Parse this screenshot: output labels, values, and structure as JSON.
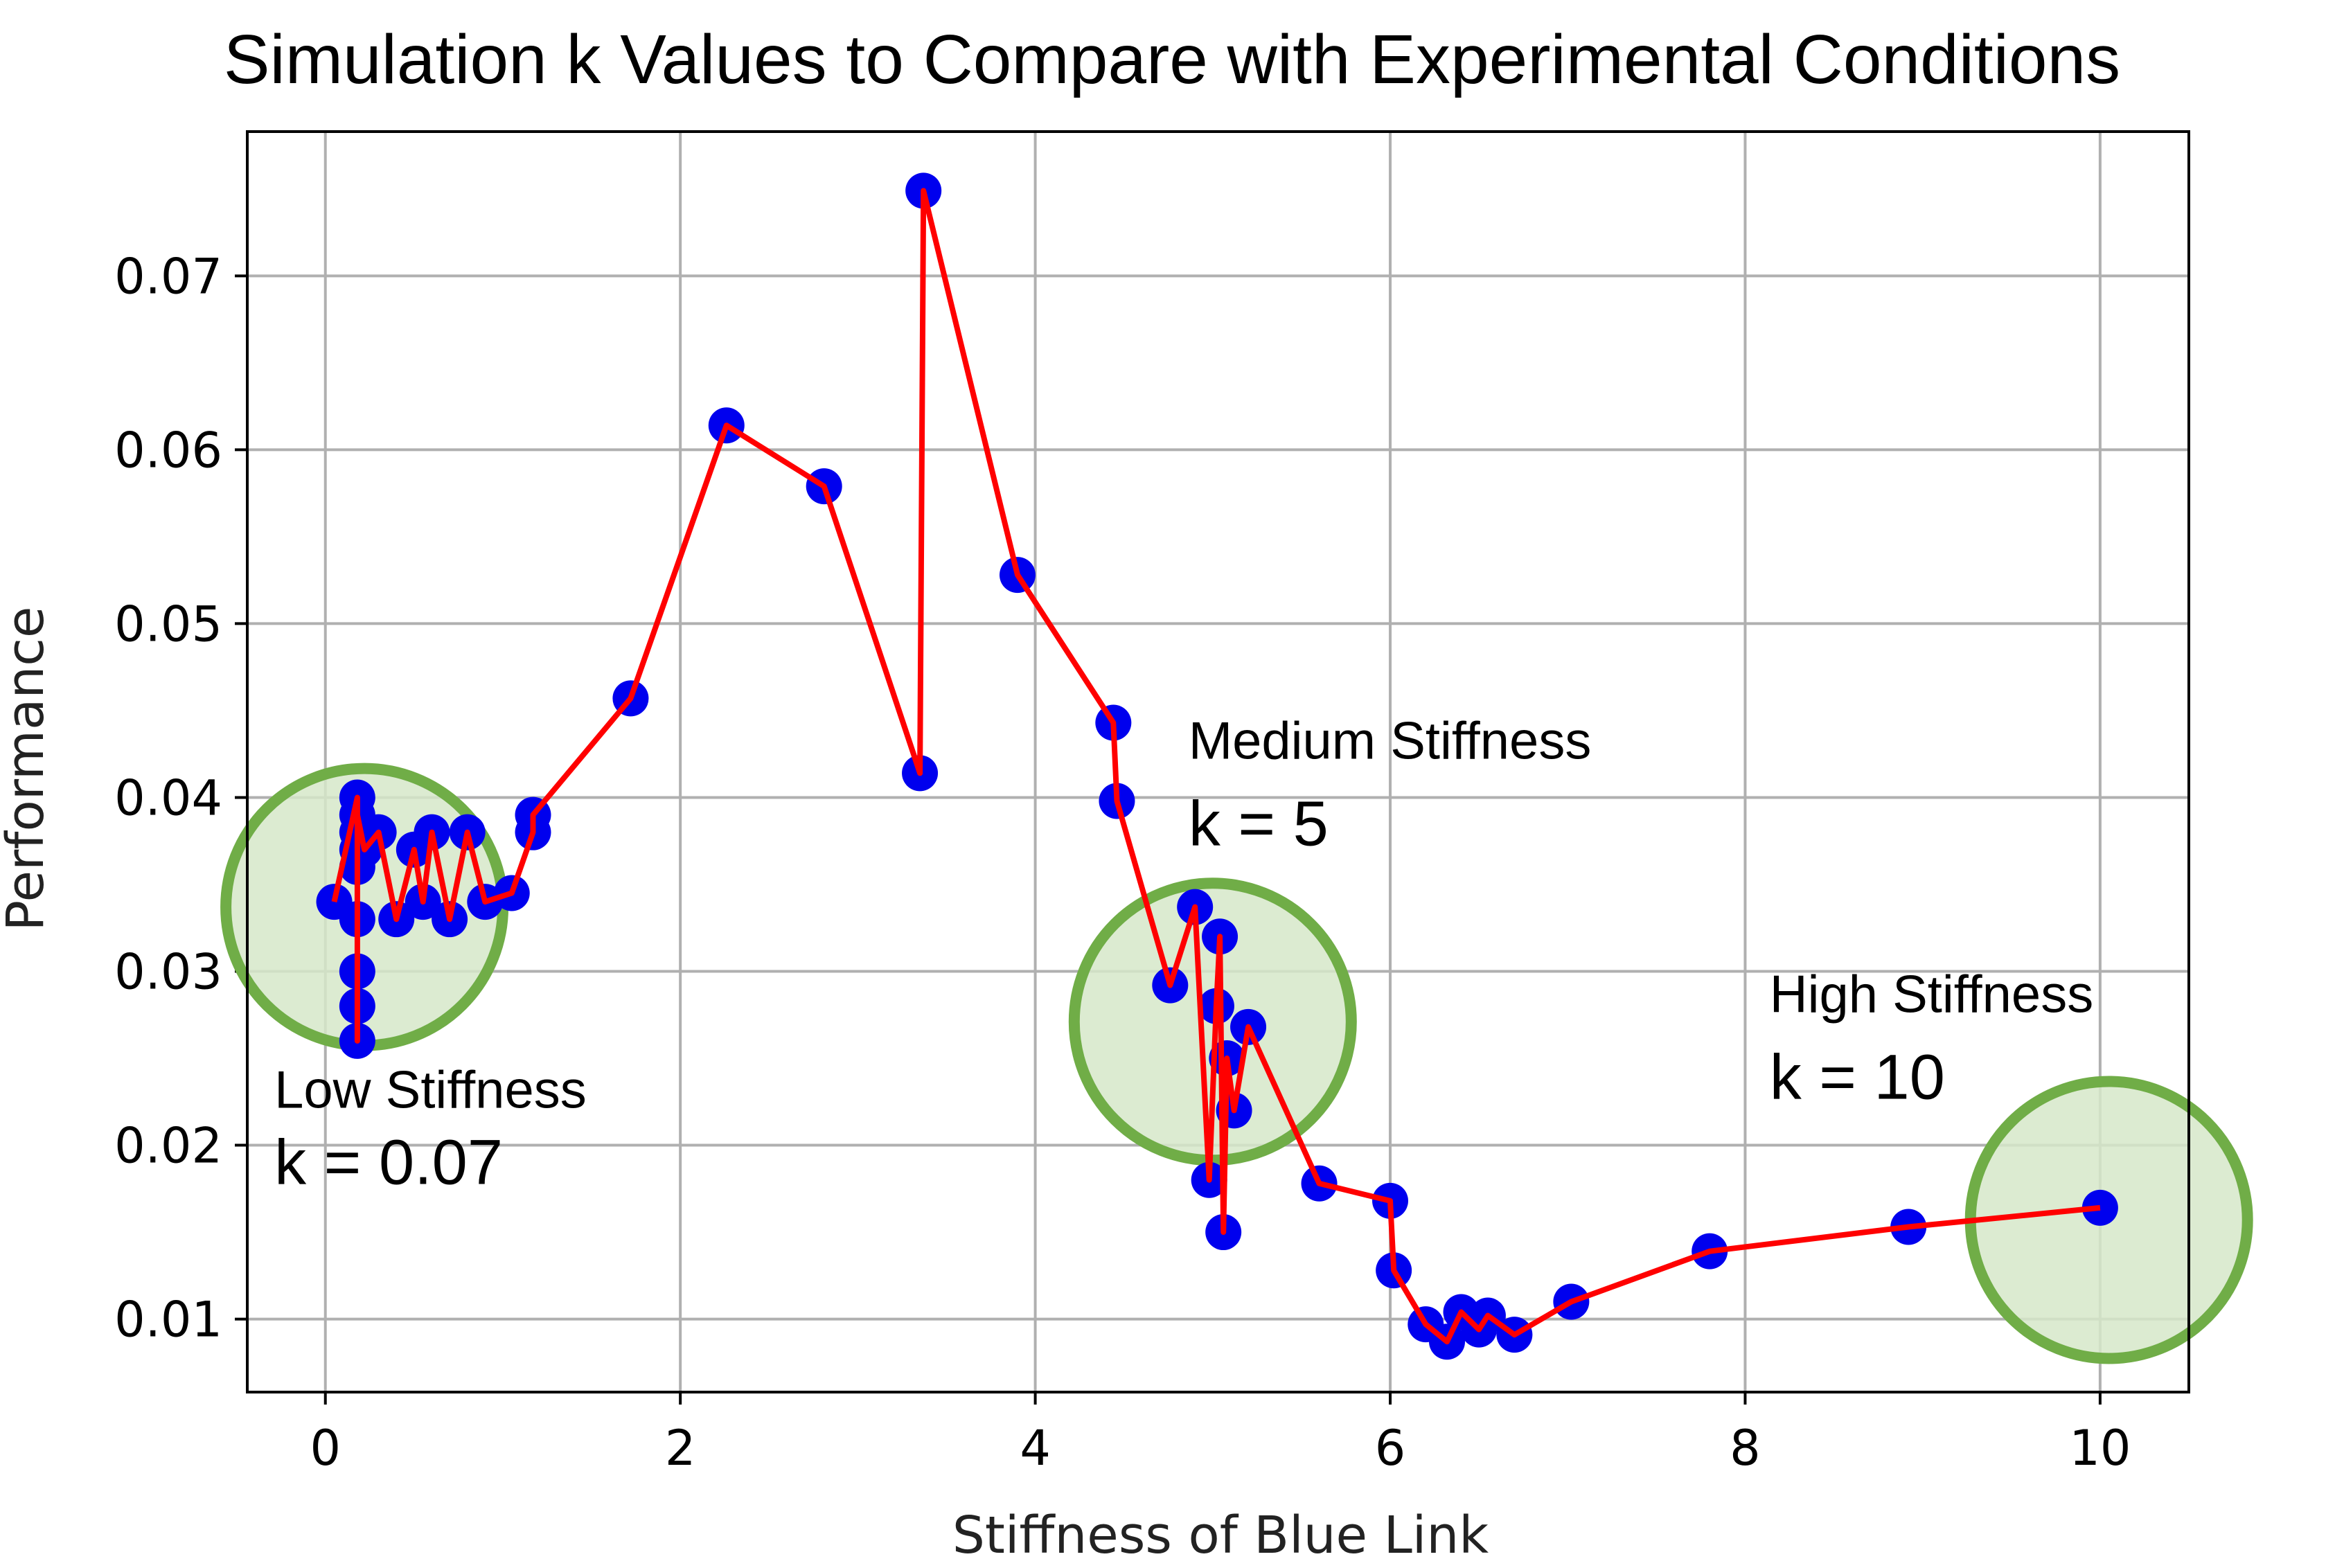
{
  "chart_data": {
    "type": "line",
    "title": "Simulation k Values to Compare with Experimental Conditions",
    "xlabel": "Stiffness of Blue Link",
    "ylabel": "Performance",
    "xlim": [
      -0.44,
      10.5
    ],
    "ylim": [
      0.0058,
      0.0783
    ],
    "x_ticks": [
      0,
      2,
      4,
      6,
      8,
      10
    ],
    "x_tick_labels": [
      "0",
      "2",
      "4",
      "6",
      "8",
      "10"
    ],
    "y_ticks": [
      0.01,
      0.02,
      0.03,
      0.04,
      0.05,
      0.06,
      0.07
    ],
    "y_tick_labels": [
      "0.01",
      "0.02",
      "0.03",
      "0.04",
      "0.05",
      "0.06",
      "0.07"
    ],
    "grid": true,
    "series": [
      {
        "marker_color": "#0000ee",
        "line_color": "#ff0000",
        "x": [
          0.05,
          0.18,
          0.18,
          0.18,
          0.18,
          0.18,
          0.18,
          0.18,
          0.18,
          0.18,
          0.22,
          0.3,
          0.4,
          0.5,
          0.55,
          0.6,
          0.7,
          0.8,
          0.9,
          1.05,
          1.17,
          1.17,
          1.72,
          2.26,
          2.81,
          3.35,
          3.37,
          3.9,
          4.44,
          4.46,
          4.76,
          4.9,
          4.98,
          5.02,
          5.04,
          5.06,
          5.08,
          5.12,
          5.2,
          5.6,
          6.0,
          6.02,
          6.2,
          6.32,
          6.4,
          6.5,
          6.55,
          6.7,
          7.02,
          7.8,
          8.92,
          10.0
        ],
        "y": [
          0.034,
          0.04,
          0.026,
          0.038,
          0.03,
          0.037,
          0.028,
          0.036,
          0.033,
          0.039,
          0.037,
          0.038,
          0.033,
          0.037,
          0.034,
          0.038,
          0.033,
          0.038,
          0.034,
          0.0345,
          0.038,
          0.039,
          0.0457,
          0.0614,
          0.0579,
          0.0414,
          0.0749,
          0.0528,
          0.0443,
          0.0398,
          0.0292,
          0.0337,
          0.018,
          0.028,
          0.032,
          0.015,
          0.025,
          0.022,
          0.0268,
          0.0178,
          0.0168,
          0.0128,
          0.0097,
          0.0087,
          0.0104,
          0.0094,
          0.0102,
          0.0091,
          0.011,
          0.0139,
          0.0153,
          0.0164
        ]
      }
    ],
    "annotations": [
      {
        "name": "Low Stiffness",
        "k_text": "k = 0.07",
        "x": 0.22,
        "y": 0.0337,
        "color": "#70ad47"
      },
      {
        "name": "Medium Stiffness",
        "k_text": "k = 5",
        "x": 5.0,
        "y": 0.0271,
        "color": "#70ad47"
      },
      {
        "name": "High Stiffness",
        "k_text": "k = 10",
        "x": 10.05,
        "y": 0.0157,
        "color": "#70ad47"
      }
    ]
  }
}
